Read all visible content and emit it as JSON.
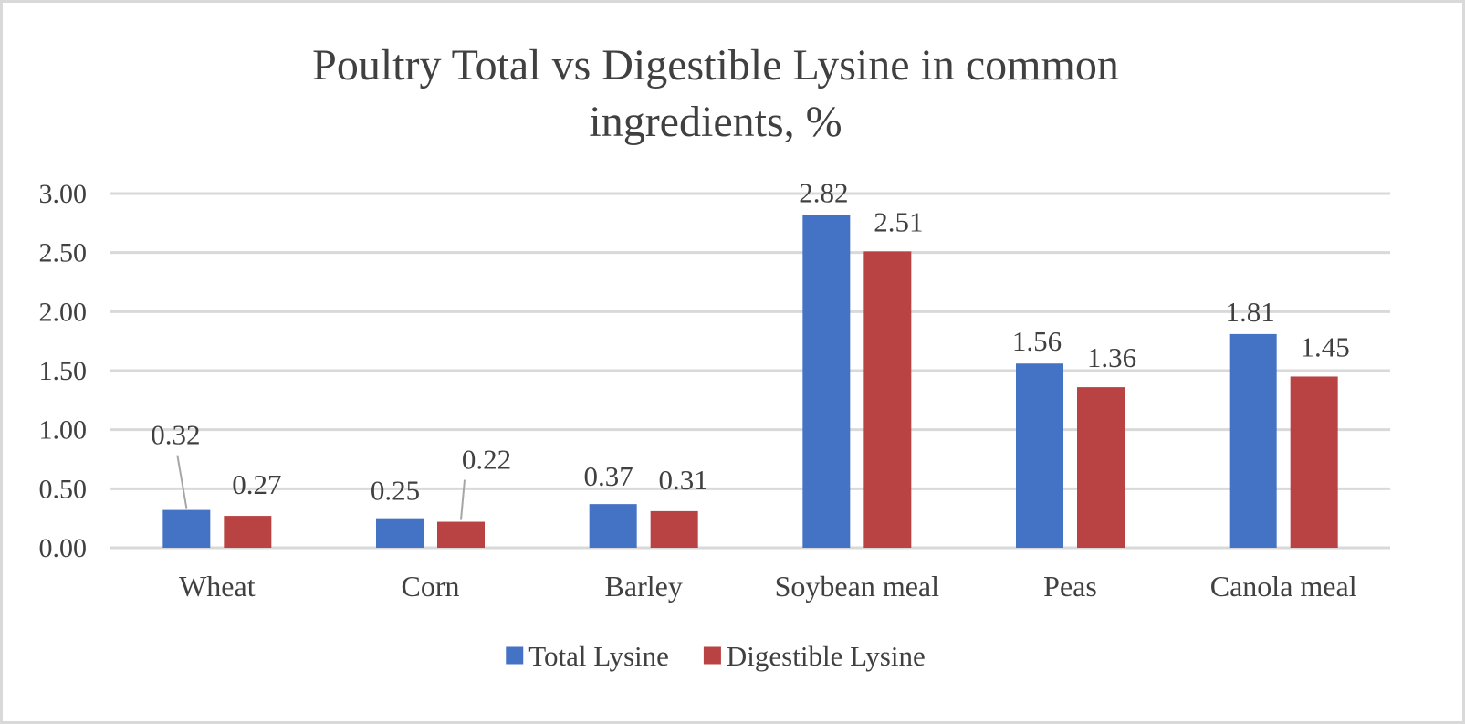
{
  "chart_data": {
    "type": "bar",
    "title_lines": [
      "Poultry Total vs Digestible Lysine in common",
      "ingredients, %"
    ],
    "categories": [
      "Wheat",
      "Corn",
      "Barley",
      "Soybean meal",
      "Peas",
      "Canola meal"
    ],
    "series": [
      {
        "name": "Total Lysine",
        "color": "#4472c4",
        "values": [
          0.32,
          0.25,
          0.37,
          2.82,
          1.56,
          1.81
        ],
        "labels": [
          "0.32",
          "0.25",
          "0.37",
          "2.82",
          "1.56",
          "1.81"
        ]
      },
      {
        "name": "Digestible Lysine",
        "color": "#b94343",
        "values": [
          0.27,
          0.22,
          0.31,
          2.51,
          1.36,
          1.45
        ],
        "labels": [
          "0.27",
          "0.22",
          "0.31",
          "2.51",
          "1.36",
          "1.45"
        ]
      }
    ],
    "ylim": [
      0,
      3
    ],
    "y_ticks": [
      "0.00",
      "0.50",
      "1.00",
      "1.50",
      "2.00",
      "2.50",
      "3.00"
    ],
    "grid": true,
    "legend_position": "bottom"
  }
}
